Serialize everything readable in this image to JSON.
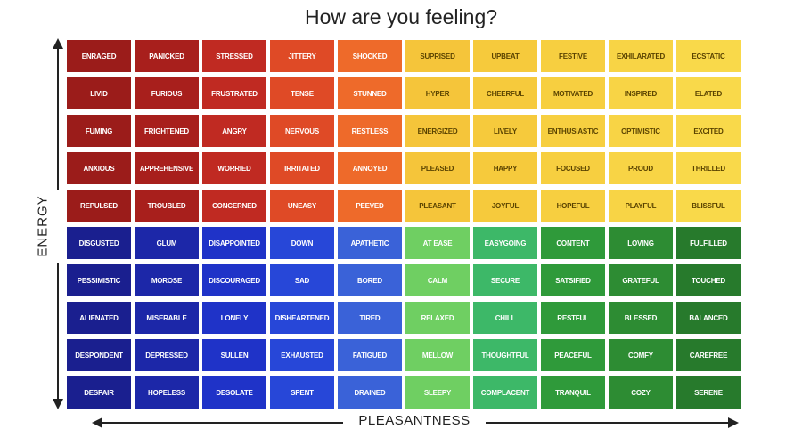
{
  "title": "How are you feeling?",
  "y_axis_label": "ENERGY",
  "x_axis_label": "PLEASANTNESS",
  "rows": [
    [
      {
        "label": "ENRAGED",
        "color": "#9b1c1a"
      },
      {
        "label": "PANICKED",
        "color": "#a81f1c"
      },
      {
        "label": "STRESSED",
        "color": "#c02a22"
      },
      {
        "label": "JITTERY",
        "color": "#df4a26"
      },
      {
        "label": "SHOCKED",
        "color": "#ee6a2a"
      },
      {
        "label": "SUPRISED",
        "color": "#f5c53a"
      },
      {
        "label": "UPBEAT",
        "color": "#f6ca3c"
      },
      {
        "label": "FESTIVE",
        "color": "#f7cf40"
      },
      {
        "label": "EXHILARATED",
        "color": "#f8d445"
      },
      {
        "label": "ECSTATIC",
        "color": "#f9d94a"
      }
    ],
    [
      {
        "label": "LIVID",
        "color": "#9b1c1a"
      },
      {
        "label": "FURIOUS",
        "color": "#a81f1c"
      },
      {
        "label": "FRUSTRATED",
        "color": "#c02a22"
      },
      {
        "label": "TENSE",
        "color": "#df4a26"
      },
      {
        "label": "STUNNED",
        "color": "#ee6a2a"
      },
      {
        "label": "HYPER",
        "color": "#f5c53a"
      },
      {
        "label": "CHEERFUL",
        "color": "#f6ca3c"
      },
      {
        "label": "MOTIVATED",
        "color": "#f7cf40"
      },
      {
        "label": "INSPIRED",
        "color": "#f8d445"
      },
      {
        "label": "ELATED",
        "color": "#f9d94a"
      }
    ],
    [
      {
        "label": "FUMING",
        "color": "#9b1c1a"
      },
      {
        "label": "FRIGHTENED",
        "color": "#a81f1c"
      },
      {
        "label": "ANGRY",
        "color": "#c02a22"
      },
      {
        "label": "NERVOUS",
        "color": "#df4a26"
      },
      {
        "label": "RESTLESS",
        "color": "#ee6a2a"
      },
      {
        "label": "ENERGIZED",
        "color": "#f5c53a"
      },
      {
        "label": "LIVELY",
        "color": "#f6ca3c"
      },
      {
        "label": "ENTHUSIASTIC",
        "color": "#f7cf40"
      },
      {
        "label": "OPTIMISTIC",
        "color": "#f8d445"
      },
      {
        "label": "EXCITED",
        "color": "#f9d94a"
      }
    ],
    [
      {
        "label": "ANXIOUS",
        "color": "#9b1c1a"
      },
      {
        "label": "APPREHENSIVE",
        "color": "#a81f1c"
      },
      {
        "label": "WORRIED",
        "color": "#c02a22"
      },
      {
        "label": "IRRITATED",
        "color": "#df4a26"
      },
      {
        "label": "ANNOYED",
        "color": "#ee6a2a"
      },
      {
        "label": "PLEASED",
        "color": "#f5c53a"
      },
      {
        "label": "HAPPY",
        "color": "#f6ca3c"
      },
      {
        "label": "FOCUSED",
        "color": "#f7cf40"
      },
      {
        "label": "PROUD",
        "color": "#f8d445"
      },
      {
        "label": "THRILLED",
        "color": "#f9d94a"
      }
    ],
    [
      {
        "label": "REPULSED",
        "color": "#9b1c1a"
      },
      {
        "label": "TROUBLED",
        "color": "#a81f1c"
      },
      {
        "label": "CONCERNED",
        "color": "#c02a22"
      },
      {
        "label": "UNEASY",
        "color": "#df4a26"
      },
      {
        "label": "PEEVED",
        "color": "#ee6a2a"
      },
      {
        "label": "PLEASANT",
        "color": "#f5c53a"
      },
      {
        "label": "JOYFUL",
        "color": "#f6ca3c"
      },
      {
        "label": "HOPEFUL",
        "color": "#f7cf40"
      },
      {
        "label": "PLAYFUL",
        "color": "#f8d445"
      },
      {
        "label": "BLISSFUL",
        "color": "#f9d94a"
      }
    ],
    [
      {
        "label": "DISGUSTED",
        "color": "#1a1f8f"
      },
      {
        "label": "GLUM",
        "color": "#1c27a8"
      },
      {
        "label": "DISAPPOINTED",
        "color": "#1f33c8"
      },
      {
        "label": "DOWN",
        "color": "#2747d8"
      },
      {
        "label": "APATHETIC",
        "color": "#3a62d8"
      },
      {
        "label": "AT EASE",
        "color": "#6fcf62"
      },
      {
        "label": "EASYGOING",
        "color": "#3db868"
      },
      {
        "label": "CONTENT",
        "color": "#2f9a3a"
      },
      {
        "label": "LOVING",
        "color": "#2d8c33"
      },
      {
        "label": "FULFILLED",
        "color": "#277a2c"
      }
    ],
    [
      {
        "label": "PESSIMISTIC",
        "color": "#1a1f8f"
      },
      {
        "label": "MOROSE",
        "color": "#1c27a8"
      },
      {
        "label": "DISCOURAGED",
        "color": "#1f33c8"
      },
      {
        "label": "SAD",
        "color": "#2747d8"
      },
      {
        "label": "BORED",
        "color": "#3a62d8"
      },
      {
        "label": "CALM",
        "color": "#6fcf62"
      },
      {
        "label": "SECURE",
        "color": "#3db868"
      },
      {
        "label": "SATSIFIED",
        "color": "#2f9a3a"
      },
      {
        "label": "GRATEFUL",
        "color": "#2d8c33"
      },
      {
        "label": "TOUCHED",
        "color": "#277a2c"
      }
    ],
    [
      {
        "label": "ALIENATED",
        "color": "#1a1f8f"
      },
      {
        "label": "MISERABLE",
        "color": "#1c27a8"
      },
      {
        "label": "LONELY",
        "color": "#1f33c8"
      },
      {
        "label": "DISHEARTENED",
        "color": "#2747d8"
      },
      {
        "label": "TIRED",
        "color": "#3a62d8"
      },
      {
        "label": "RELAXED",
        "color": "#6fcf62"
      },
      {
        "label": "CHILL",
        "color": "#3db868"
      },
      {
        "label": "RESTFUL",
        "color": "#2f9a3a"
      },
      {
        "label": "BLESSED",
        "color": "#2d8c33"
      },
      {
        "label": "BALANCED",
        "color": "#277a2c"
      }
    ],
    [
      {
        "label": "DESPONDENT",
        "color": "#1a1f8f"
      },
      {
        "label": "DEPRESSED",
        "color": "#1c27a8"
      },
      {
        "label": "SULLEN",
        "color": "#1f33c8"
      },
      {
        "label": "EXHAUSTED",
        "color": "#2747d8"
      },
      {
        "label": "FATIGUED",
        "color": "#3a62d8"
      },
      {
        "label": "MELLOW",
        "color": "#6fcf62"
      },
      {
        "label": "THOUGHTFUL",
        "color": "#3db868"
      },
      {
        "label": "PEACEFUL",
        "color": "#2f9a3a"
      },
      {
        "label": "COMFY",
        "color": "#2d8c33"
      },
      {
        "label": "CAREFREE",
        "color": "#277a2c"
      }
    ],
    [
      {
        "label": "DESPAIR",
        "color": "#1a1f8f"
      },
      {
        "label": "HOPELESS",
        "color": "#1c27a8"
      },
      {
        "label": "DESOLATE",
        "color": "#1f33c8"
      },
      {
        "label": "SPENT",
        "color": "#2747d8"
      },
      {
        "label": "DRAINED",
        "color": "#3a62d8"
      },
      {
        "label": "SLEEPY",
        "color": "#6fcf62"
      },
      {
        "label": "COMPLACENT",
        "color": "#3db868"
      },
      {
        "label": "TRANQUIL",
        "color": "#2f9a3a"
      },
      {
        "label": "COZY",
        "color": "#2d8c33"
      },
      {
        "label": "SERENE",
        "color": "#277a2c"
      }
    ]
  ]
}
